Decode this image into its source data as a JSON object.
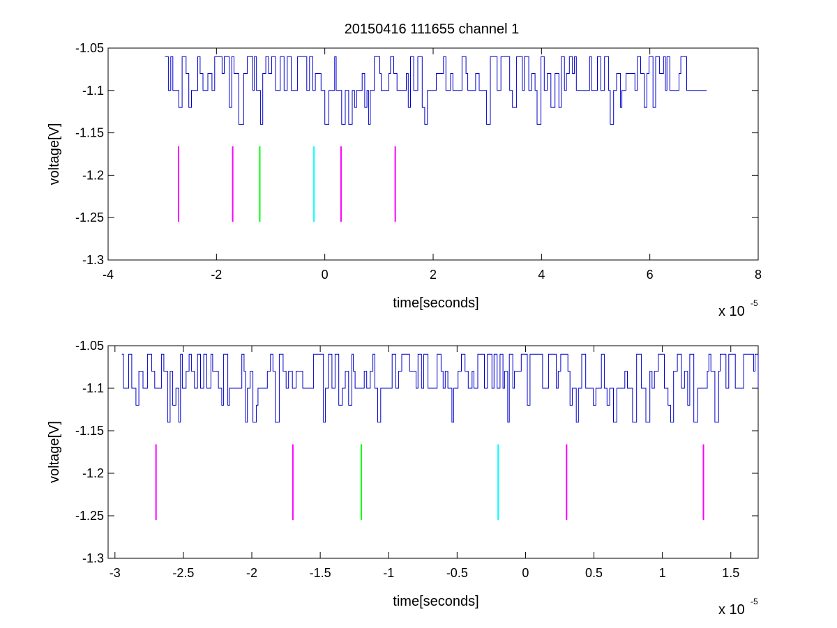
{
  "figure": {
    "title": "20150416 111655 channel 1"
  },
  "chart_data": [
    {
      "type": "line",
      "title": "20150416 111655 channel 1",
      "xlabel": "time[seconds]",
      "ylabel": "voltage[V]",
      "x_multiplier_base": "x 10",
      "x_multiplier_exp": "-5",
      "xlim": [
        -4,
        8
      ],
      "ylim": [
        -1.3,
        -1.05
      ],
      "xticks": [
        -4,
        -2,
        0,
        2,
        4,
        6,
        8
      ],
      "xtick_labels": [
        "-4",
        "-2",
        "0",
        "2",
        "4",
        "6",
        "8"
      ],
      "yticks": [
        -1.05,
        -1.1,
        -1.15,
        -1.2,
        -1.25,
        -1.3
      ],
      "ytick_labels": [
        "-1.05",
        "-1.1",
        "-1.15",
        "-1.2",
        "-1.25",
        "-1.3"
      ],
      "grid": false,
      "signal": {
        "color": "#0000cc",
        "x_start": -2.95,
        "x_end": 7.05,
        "levels": [
          -1.06,
          -1.08,
          -1.1,
          -1.12,
          -1.14
        ],
        "baseline": -1.1
      },
      "markers": [
        {
          "x": -2.7,
          "y_top": -1.166,
          "y_bottom": -1.255,
          "color": "#ff00ff"
        },
        {
          "x": -1.7,
          "y_top": -1.166,
          "y_bottom": -1.255,
          "color": "#ff00ff"
        },
        {
          "x": -1.2,
          "y_top": -1.166,
          "y_bottom": -1.255,
          "color": "#00ff00"
        },
        {
          "x": -0.2,
          "y_top": -1.166,
          "y_bottom": -1.255,
          "color": "#00ffff"
        },
        {
          "x": 0.3,
          "y_top": -1.166,
          "y_bottom": -1.255,
          "color": "#ff00ff"
        },
        {
          "x": 1.3,
          "y_top": -1.166,
          "y_bottom": -1.255,
          "color": "#ff00ff"
        }
      ]
    },
    {
      "type": "line",
      "xlabel": "time[seconds]",
      "ylabel": "voltage[V]",
      "x_multiplier_base": "x 10",
      "x_multiplier_exp": "-5",
      "xlim": [
        -3.05,
        1.7
      ],
      "ylim": [
        -1.3,
        -1.05
      ],
      "xticks": [
        -3,
        -2.5,
        -2,
        -1.5,
        -1,
        -0.5,
        0,
        0.5,
        1,
        1.5
      ],
      "xtick_labels": [
        "-3",
        "-2.5",
        "-2",
        "-1.5",
        "-1",
        "-0.5",
        "0",
        "0.5",
        "1",
        "1.5"
      ],
      "yticks": [
        -1.05,
        -1.1,
        -1.15,
        -1.2,
        -1.25,
        -1.3
      ],
      "ytick_labels": [
        "-1.05",
        "-1.1",
        "-1.15",
        "-1.2",
        "-1.25",
        "-1.3"
      ],
      "grid": false,
      "signal": {
        "color": "#0000cc",
        "x_start": -2.95,
        "x_end": 1.7,
        "levels": [
          -1.06,
          -1.08,
          -1.1,
          -1.12,
          -1.14
        ],
        "baseline": -1.1
      },
      "markers": [
        {
          "x": -2.7,
          "y_top": -1.166,
          "y_bottom": -1.255,
          "color": "#ff00ff"
        },
        {
          "x": -1.7,
          "y_top": -1.166,
          "y_bottom": -1.255,
          "color": "#ff00ff"
        },
        {
          "x": -1.2,
          "y_top": -1.166,
          "y_bottom": -1.255,
          "color": "#00ff00"
        },
        {
          "x": -0.2,
          "y_top": -1.166,
          "y_bottom": -1.255,
          "color": "#00ffff"
        },
        {
          "x": 0.3,
          "y_top": -1.166,
          "y_bottom": -1.255,
          "color": "#ff00ff"
        },
        {
          "x": 1.3,
          "y_top": -1.166,
          "y_bottom": -1.255,
          "color": "#ff00ff"
        }
      ]
    }
  ]
}
